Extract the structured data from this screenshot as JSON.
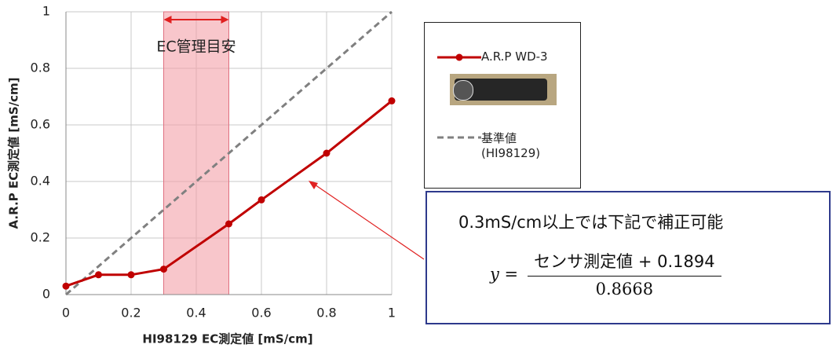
{
  "chart_data": {
    "type": "line",
    "xlabel": "HI98129 EC測定値  [mS/cm]",
    "ylabel": "A.R.P EC測定値  [mS/cm]",
    "xlim": [
      0,
      1
    ],
    "ylim": [
      0,
      1
    ],
    "xticks": [
      0,
      0.2,
      0.4,
      0.6,
      0.8,
      1
    ],
    "yticks": [
      0,
      0.2,
      0.4,
      0.6,
      0.8,
      1
    ],
    "grid": true,
    "band": {
      "x": [
        0.3,
        0.5
      ],
      "label": "EC管理目安",
      "color": "#f4a0a8"
    },
    "series": [
      {
        "name": "A.R.P WD-3",
        "color": "#c00000",
        "style": "solid",
        "markers": true,
        "x": [
          0,
          0.1,
          0.2,
          0.3,
          0.5,
          0.6,
          0.8,
          1
        ],
        "values": [
          0.03,
          0.07,
          0.07,
          0.09,
          0.25,
          0.335,
          0.5,
          0.685
        ]
      },
      {
        "name": "基準値 (HI98129)",
        "color": "#808080",
        "style": "dashed",
        "markers": false,
        "x": [
          0,
          1
        ],
        "values": [
          0,
          1
        ]
      }
    ],
    "annotation": {
      "title": "0.3mS/cm以上では下記で補正可能",
      "lhs": "y =",
      "numerator": "センサ測定値 + 0.1894",
      "denominator": "0.8668"
    }
  }
}
